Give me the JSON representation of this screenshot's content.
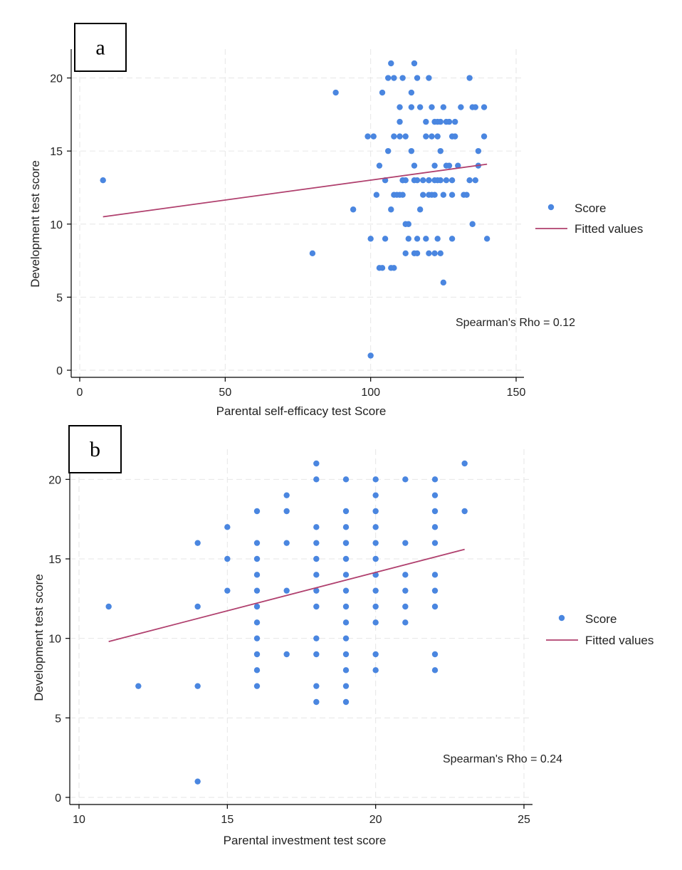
{
  "chart_data": [
    {
      "type": "scatter",
      "panel_label": "a",
      "xlabel": "Parental self-efficacy test Score",
      "ylabel": "Development test score",
      "xlim": [
        0,
        150
      ],
      "ylim": [
        0,
        21
      ],
      "xticks": [
        0,
        50,
        100,
        150
      ],
      "yticks": [
        0,
        5,
        10,
        15,
        20
      ],
      "grid": true,
      "legend_position": "right",
      "annotation": "Spearman's Rho = 0.12",
      "series": [
        {
          "name": "Score",
          "kind": "scatter",
          "color": "#4a86e0",
          "x": [
            8,
            80,
            88,
            94,
            100,
            99,
            100,
            101,
            102,
            103,
            103,
            104,
            104,
            105,
            105,
            106,
            106,
            107,
            107,
            107,
            108,
            108,
            108,
            108,
            109,
            110,
            110,
            110,
            110,
            111,
            111,
            111,
            111,
            112,
            112,
            112,
            112,
            113,
            113,
            114,
            114,
            114,
            115,
            115,
            115,
            115,
            116,
            116,
            116,
            116,
            117,
            117,
            118,
            118,
            119,
            119,
            119,
            120,
            120,
            120,
            120,
            120,
            121,
            121,
            121,
            122,
            122,
            122,
            122,
            122,
            123,
            123,
            123,
            123,
            124,
            124,
            124,
            124,
            125,
            125,
            125,
            126,
            126,
            126,
            127,
            127,
            128,
            128,
            128,
            128,
            129,
            129,
            130,
            131,
            132,
            133,
            134,
            134,
            135,
            135,
            136,
            136,
            137,
            137,
            139,
            139,
            140
          ],
          "y": [
            13,
            8,
            19,
            11,
            1,
            16,
            9,
            16,
            12,
            14,
            7,
            19,
            7,
            9,
            13,
            15,
            20,
            7,
            11,
            21,
            7,
            12,
            16,
            20,
            12,
            17,
            12,
            18,
            16,
            20,
            12,
            13,
            13,
            8,
            13,
            10,
            16,
            10,
            9,
            19,
            18,
            15,
            21,
            13,
            8,
            14,
            13,
            20,
            9,
            8,
            11,
            18,
            13,
            12,
            16,
            17,
            9,
            8,
            13,
            12,
            20,
            13,
            18,
            16,
            12,
            13,
            8,
            17,
            12,
            14,
            17,
            13,
            16,
            9,
            17,
            8,
            13,
            15,
            18,
            12,
            6,
            14,
            13,
            17,
            14,
            17,
            16,
            13,
            12,
            9,
            16,
            17,
            14,
            18,
            12,
            12,
            13,
            20,
            10,
            18,
            13,
            18,
            14,
            15,
            18,
            16,
            9
          ]
        },
        {
          "name": "Fitted values",
          "kind": "line",
          "color": "#b0406e",
          "x": [
            8,
            140
          ],
          "y": [
            10.5,
            14.1
          ]
        }
      ]
    },
    {
      "type": "scatter",
      "panel_label": "b",
      "xlabel": "Parental investment test score",
      "ylabel": "Development test score",
      "xlim": [
        10,
        25
      ],
      "ylim": [
        0,
        21
      ],
      "xticks": [
        10,
        15,
        20,
        25
      ],
      "yticks": [
        0,
        5,
        10,
        15,
        20
      ],
      "grid": true,
      "legend_position": "right",
      "annotation": "Spearman's Rho = 0.24",
      "series": [
        {
          "name": "Score",
          "kind": "scatter",
          "color": "#4a86e0",
          "x": [
            11,
            12,
            14,
            14,
            14,
            14,
            15,
            15,
            15,
            16,
            16,
            16,
            16,
            16,
            16,
            16,
            16,
            16,
            16,
            16,
            17,
            17,
            17,
            17,
            17,
            18,
            18,
            18,
            18,
            18,
            18,
            18,
            18,
            18,
            18,
            18,
            18,
            19,
            19,
            19,
            19,
            19,
            19,
            19,
            19,
            19,
            19,
            19,
            19,
            19,
            19,
            19,
            20,
            20,
            20,
            20,
            20,
            20,
            20,
            20,
            20,
            20,
            20,
            20,
            20,
            21,
            21,
            21,
            21,
            21,
            21,
            22,
            22,
            22,
            22,
            22,
            22,
            22,
            22,
            22,
            22,
            23,
            23
          ],
          "y": [
            12,
            7,
            16,
            12,
            7,
            1,
            17,
            15,
            13,
            18,
            16,
            15,
            14,
            13,
            12,
            11,
            10,
            8,
            7,
            9,
            19,
            18,
            16,
            13,
            9,
            21,
            20,
            17,
            16,
            15,
            14,
            13,
            12,
            10,
            9,
            7,
            6,
            20,
            17,
            16,
            15,
            14,
            13,
            12,
            10,
            9,
            8,
            7,
            6,
            18,
            11,
            16,
            20,
            19,
            18,
            17,
            16,
            15,
            14,
            13,
            12,
            11,
            9,
            8,
            14,
            20,
            16,
            14,
            13,
            12,
            11,
            20,
            19,
            18,
            17,
            16,
            13,
            12,
            9,
            8,
            14,
            21,
            18
          ]
        },
        {
          "name": "Fitted values",
          "kind": "line",
          "color": "#b0406e",
          "x": [
            11,
            23
          ],
          "y": [
            9.8,
            15.6
          ]
        }
      ]
    }
  ]
}
